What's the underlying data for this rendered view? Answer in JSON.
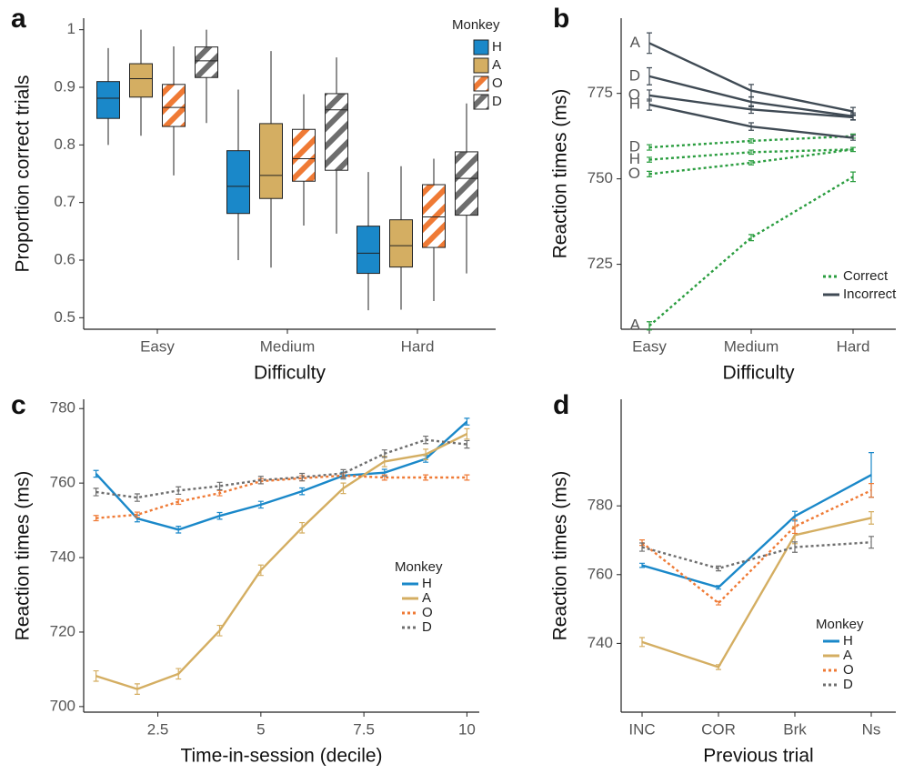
{
  "chart_data": [
    {
      "type": "box",
      "label": "a",
      "y_label": "Proportion correct trials",
      "x_label": "Difficulty",
      "categories": [
        "Easy",
        "Medium",
        "Hard"
      ],
      "ylim": [
        0.48,
        1.02
      ],
      "yticks": [
        0.5,
        0.6,
        0.7,
        0.8,
        0.9,
        1
      ],
      "legend_title": "Monkey",
      "legend": "top right",
      "series": [
        {
          "name": "H",
          "color": "#1a88c9",
          "hatch": false,
          "whisker_low": [
            0.8,
            0.6,
            0.513
          ],
          "q1": [
            0.846,
            0.681,
            0.577
          ],
          "median": [
            0.881,
            0.728,
            0.612
          ],
          "q3": [
            0.91,
            0.79,
            0.659
          ],
          "whisker_high": [
            0.968,
            0.896,
            0.753
          ]
        },
        {
          "name": "A",
          "color": "#d4ae62",
          "hatch": false,
          "whisker_low": [
            0.816,
            0.587,
            0.514
          ],
          "q1": [
            0.883,
            0.707,
            0.588
          ],
          "median": [
            0.915,
            0.747,
            0.625
          ],
          "q3": [
            0.941,
            0.837,
            0.67
          ],
          "whisker_high": [
            1.0,
            0.963,
            0.763
          ]
        },
        {
          "name": "O",
          "color": "#ef7a35",
          "hatch": true,
          "whisker_low": [
            0.747,
            0.66,
            0.529
          ],
          "q1": [
            0.832,
            0.737,
            0.622
          ],
          "median": [
            0.865,
            0.776,
            0.675
          ],
          "q3": [
            0.905,
            0.827,
            0.731
          ],
          "whisker_high": [
            0.971,
            0.888,
            0.776
          ]
        },
        {
          "name": "D",
          "color": "#6e6e6e",
          "hatch": true,
          "whisker_low": [
            0.838,
            0.646,
            0.577
          ],
          "q1": [
            0.917,
            0.756,
            0.678
          ],
          "median": [
            0.946,
            0.861,
            0.742
          ],
          "q3": [
            0.97,
            0.889,
            0.788
          ],
          "whisker_high": [
            1.0,
            0.952,
            0.872
          ]
        }
      ]
    },
    {
      "type": "line",
      "label": "b",
      "y_label": "Reaction times (ms)",
      "x_label": "Difficulty",
      "categories": [
        "Easy",
        "Medium",
        "Hard"
      ],
      "ylim": [
        706,
        797
      ],
      "yticks": [
        725,
        750,
        775
      ],
      "legend": "bottom right",
      "groups": [
        {
          "name": "Correct",
          "color": "#2a9d3f",
          "linestyle": "dotted",
          "series": [
            {
              "name": "D",
              "values": [
                759.2,
                761.1,
                762.5
              ],
              "errors": [
                0.8,
                0.6,
                0.6
              ]
            },
            {
              "name": "H",
              "values": [
                755.6,
                757.8,
                758.6
              ],
              "errors": [
                0.7,
                0.6,
                0.6
              ]
            },
            {
              "name": "O",
              "values": [
                751.4,
                754.7,
                758.6
              ],
              "errors": [
                0.8,
                0.6,
                0.6
              ]
            },
            {
              "name": "A",
              "values": [
                707,
                732.8,
                750.6
              ],
              "errors": [
                1.2,
                0.9,
                1.4
              ]
            }
          ]
        },
        {
          "name": "Incorrect",
          "color": "#3f4a54",
          "linestyle": "solid",
          "series": [
            {
              "name": "A",
              "values": [
                789.7,
                775.8,
                769.7
              ],
              "errors": [
                3,
                1.8,
                1.2
              ]
            },
            {
              "name": "D",
              "values": [
                780,
                772.5,
                768.3
              ],
              "errors": [
                2.5,
                1.4,
                1
              ]
            },
            {
              "name": "O",
              "values": [
                774.4,
                770.3,
                768
              ],
              "errors": [
                1.6,
                1.1,
                0.8
              ]
            },
            {
              "name": "H",
              "values": [
                771.7,
                765.3,
                762
              ],
              "errors": [
                1.6,
                1.1,
                0.7
              ]
            }
          ]
        }
      ]
    },
    {
      "type": "line",
      "label": "c",
      "y_label": "Reaction times (ms)",
      "x_label": "Time-in-session (decile)",
      "x": [
        1,
        2,
        3,
        4,
        5,
        6,
        7,
        8,
        9,
        10
      ],
      "xlim": [
        0.7,
        10.3
      ],
      "xticks": [
        2.5,
        5,
        7.5,
        10
      ],
      "ylim": [
        698.5,
        782.5
      ],
      "yticks": [
        700,
        720,
        740,
        760,
        780
      ],
      "legend_title": "Monkey",
      "legend": "right",
      "series": [
        {
          "name": "H",
          "color": "#1a88c9",
          "linestyle": "solid",
          "values": [
            762.5,
            750.5,
            747.5,
            751.2,
            754.2,
            757.8,
            762,
            762.8,
            766.5,
            776.5
          ],
          "errors": [
            0.9,
            0.9,
            0.9,
            0.9,
            0.9,
            0.9,
            0.9,
            0.9,
            0.9,
            0.9
          ]
        },
        {
          "name": "A",
          "color": "#d4ae62",
          "linestyle": "solid",
          "values": [
            708.2,
            704.7,
            708.8,
            720.4,
            736.6,
            748,
            758.6,
            765.8,
            767.7,
            773.2
          ],
          "errors": [
            1.4,
            1.4,
            1.4,
            1.4,
            1.4,
            1.4,
            1.4,
            1.4,
            1.4,
            1.4
          ]
        },
        {
          "name": "O",
          "color": "#ef7a35",
          "linestyle": "dotted",
          "values": [
            750.6,
            751.5,
            755,
            757.3,
            760.5,
            761.3,
            762,
            761.5,
            761.5,
            761.5
          ],
          "errors": [
            0.7,
            0.7,
            0.7,
            0.7,
            0.7,
            0.7,
            0.7,
            0.7,
            0.7,
            0.7
          ]
        },
        {
          "name": "D",
          "color": "#6e6e6e",
          "linestyle": "dotted",
          "values": [
            757.6,
            756.1,
            758,
            759.2,
            760.8,
            761.6,
            762.6,
            767.9,
            771.6,
            770.4
          ],
          "errors": [
            1,
            1,
            1,
            1,
            1,
            1,
            1,
            1,
            1,
            1
          ]
        }
      ]
    },
    {
      "type": "line",
      "label": "d",
      "y_label": "Reaction times (ms)",
      "x_label": "Previous trial",
      "categories": [
        "INC",
        "COR",
        "Brk",
        "Ns"
      ],
      "ylim": [
        720,
        811
      ],
      "yticks": [
        740,
        760,
        780
      ],
      "legend_title": "Monkey",
      "legend": "bottom right",
      "series": [
        {
          "name": "H",
          "color": "#1a88c9",
          "linestyle": "solid",
          "values": [
            762.7,
            756.3,
            777,
            789
          ],
          "errors": [
            0.6,
            0.5,
            1.4,
            6.5
          ]
        },
        {
          "name": "A",
          "color": "#d4ae62",
          "linestyle": "solid",
          "values": [
            740.4,
            733.1,
            771.5,
            776.5
          ],
          "errors": [
            1.3,
            0.7,
            2.5,
            1.8
          ]
        },
        {
          "name": "O",
          "color": "#ef7a35",
          "linestyle": "dotted",
          "values": [
            769.3,
            751.7,
            774,
            784.5
          ],
          "errors": [
            0.8,
            0.5,
            2,
            2
          ]
        },
        {
          "name": "D",
          "color": "#6e6e6e",
          "linestyle": "dotted",
          "values": [
            768,
            761.8,
            768,
            769.4
          ],
          "errors": [
            1.2,
            0.7,
            1.5,
            1.7
          ]
        }
      ]
    }
  ]
}
